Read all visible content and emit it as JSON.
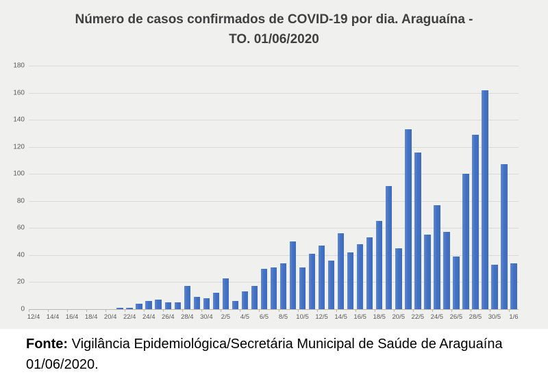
{
  "title": "Número de casos confirmados de COVID-19 por dia. Araguaína - TO. 01/06/2020",
  "footer": {
    "label": "Fonte:",
    "text": " Vigilância Epidemiológica/Secretária Municipal de Saúde de Araguaína 01/06/2020."
  },
  "chart_data": {
    "type": "bar",
    "title": "Número de casos confirmados de COVID-19 por dia. Araguaína - TO. 01/06/2020",
    "categories": [
      "12/4",
      "13/4",
      "14/4",
      "15/4",
      "16/4",
      "17/4",
      "18/4",
      "19/4",
      "20/4",
      "21/4",
      "22/4",
      "23/4",
      "24/4",
      "25/4",
      "26/4",
      "27/4",
      "28/4",
      "29/4",
      "30/4",
      "1/5",
      "2/5",
      "3/5",
      "4/5",
      "5/5",
      "6/5",
      "7/5",
      "8/5",
      "9/5",
      "10/5",
      "11/5",
      "12/5",
      "13/5",
      "14/5",
      "15/5",
      "16/5",
      "17/5",
      "18/5",
      "19/5",
      "20/5",
      "21/5",
      "22/5",
      "23/5",
      "24/5",
      "25/5",
      "26/5",
      "27/5",
      "28/5",
      "29/5",
      "30/5",
      "31/5",
      "1/6"
    ],
    "values": [
      0,
      0,
      0,
      0,
      0,
      0,
      0,
      0,
      0,
      1,
      1,
      4,
      6,
      7,
      5,
      5,
      17,
      9,
      8,
      12,
      23,
      6,
      13,
      17,
      30,
      31,
      34,
      50,
      31,
      41,
      47,
      36,
      56,
      42,
      48,
      53,
      65,
      91,
      45,
      133,
      116,
      55,
      77,
      57,
      39,
      100,
      129,
      162,
      33,
      107,
      34
    ],
    "x_label_interval": 2,
    "x_tick_labels": [
      "12/4",
      "14/4",
      "16/4",
      "18/4",
      "20/4",
      "22/4",
      "24/4",
      "26/4",
      "28/4",
      "30/4",
      "2/5",
      "4/5",
      "6/5",
      "8/5",
      "10/5",
      "12/5",
      "14/5",
      "16/5",
      "18/5",
      "20/5",
      "22/5",
      "24/5",
      "26/5",
      "28/5",
      "30/5",
      "1/6"
    ],
    "y_ticks": [
      0,
      20,
      40,
      60,
      80,
      100,
      120,
      140,
      160,
      180
    ],
    "ylim": [
      0,
      180
    ],
    "xlabel": "",
    "ylabel": "",
    "grid": true,
    "legend": "none",
    "bar_color": "#4472c4",
    "gridline_color": "#d9d9d9",
    "axis_text_color": "#595959",
    "title_color": "#404040",
    "background_color": "#f0f0ef"
  }
}
